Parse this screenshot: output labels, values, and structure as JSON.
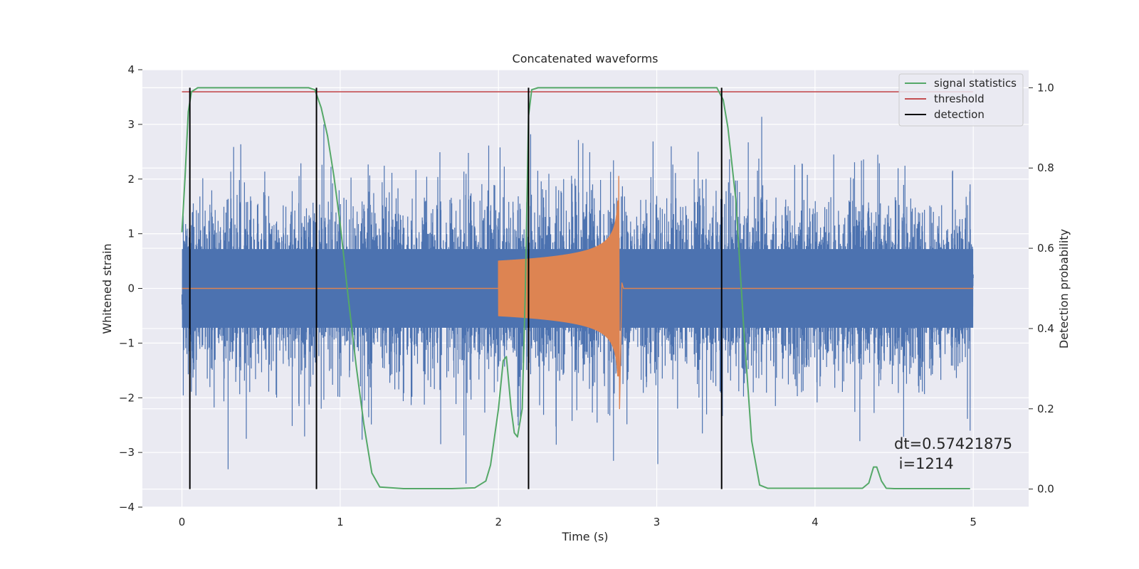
{
  "chart_data": {
    "type": "line",
    "title": "Concatenated waveforms",
    "xlabel": "Time (s)",
    "ylabel": "Whitened strain",
    "ylabel_right": "Detection probability",
    "xlim": [
      -0.25,
      5.35
    ],
    "ylim": [
      -4.0,
      4.0
    ],
    "ylim_right": [
      -0.045,
      1.045
    ],
    "x_ticks": [
      0,
      1,
      2,
      3,
      4,
      5
    ],
    "y_ticks": [
      -4,
      -3,
      -2,
      -1,
      0,
      1,
      2,
      3,
      4
    ],
    "y_ticks_right": [
      0.0,
      0.2,
      0.4,
      0.6,
      0.8,
      1.0
    ],
    "x_tick_labels": [
      "0",
      "1",
      "2",
      "3",
      "4",
      "5"
    ],
    "y_tick_labels": [
      "−4",
      "−3",
      "−2",
      "−1",
      "0",
      "1",
      "2",
      "3",
      "4"
    ],
    "y_tick_labels_right": [
      "0.0",
      "0.2",
      "0.4",
      "0.6",
      "0.8",
      "1.0"
    ],
    "grid": true,
    "legend_position": "top-right",
    "colors": {
      "strain": "#4c72b0",
      "waveform": "#dd8452",
      "signal_statistics": "#55a868",
      "threshold": "#c44e52",
      "detection": "#000000",
      "plot_background": "#eaeaf2",
      "grid": "#ffffff"
    },
    "strain": {
      "x_range": [
        0,
        5
      ],
      "core_amplitude": 0.72,
      "typical_max": 2.5,
      "peak_max": 3.45,
      "peak_min": -3.65
    },
    "waveform": {
      "x_range": [
        2.0,
        2.78
      ],
      "start_amplitude": 0.5,
      "peak_time": 2.76,
      "peak_max": 2.05,
      "peak_min": -2.2
    },
    "series": [
      {
        "name": "signal statistics",
        "axis": "right",
        "x": [
          0.0,
          0.02,
          0.04,
          0.06,
          0.1,
          0.3,
          0.6,
          0.8,
          0.84,
          0.88,
          0.92,
          0.96,
          1.0,
          1.05,
          1.1,
          1.15,
          1.2,
          1.25,
          1.4,
          1.7,
          1.85,
          1.92,
          1.95,
          2.0,
          2.03,
          2.05,
          2.08,
          2.1,
          2.12,
          2.15,
          2.17,
          2.19,
          2.21,
          2.25,
          2.5,
          3.0,
          3.38,
          3.42,
          3.45,
          3.5,
          3.55,
          3.6,
          3.65,
          3.7,
          4.0,
          4.3,
          4.34,
          4.37,
          4.39,
          4.42,
          4.45,
          4.5,
          4.7,
          4.98
        ],
        "y": [
          0.64,
          0.78,
          0.94,
          0.99,
          1.0,
          1.0,
          1.0,
          1.0,
          0.995,
          0.95,
          0.88,
          0.78,
          0.66,
          0.48,
          0.31,
          0.16,
          0.04,
          0.005,
          0.001,
          0.001,
          0.003,
          0.02,
          0.06,
          0.2,
          0.32,
          0.33,
          0.2,
          0.14,
          0.13,
          0.2,
          0.5,
          0.93,
          0.995,
          1.0,
          1.0,
          1.0,
          1.0,
          0.97,
          0.9,
          0.72,
          0.4,
          0.12,
          0.01,
          0.002,
          0.002,
          0.002,
          0.015,
          0.055,
          0.055,
          0.02,
          0.002,
          0.001,
          0.001,
          0.001
        ]
      },
      {
        "name": "threshold",
        "axis": "right",
        "x": [
          0.0,
          5.0
        ],
        "y": [
          0.99,
          0.99
        ]
      },
      {
        "name": "detection",
        "axis": "right",
        "x": [
          0.05,
          0.85,
          2.19,
          3.41
        ],
        "y_range": [
          0.0,
          1.0
        ]
      }
    ],
    "annotation": {
      "dt_line": "dt=0.57421875",
      "i_line": " i=1214",
      "x": 4.5,
      "y": -3.0
    }
  }
}
